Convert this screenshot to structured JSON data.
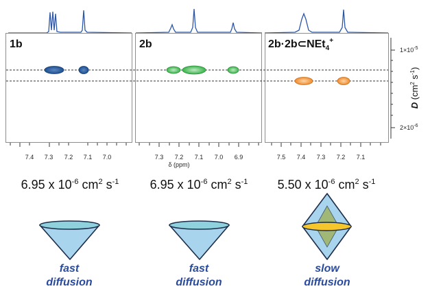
{
  "colors": {
    "spectrum": "#2a56a6",
    "frame": "#8c8c8c",
    "blue_spot": "#1d4f8f",
    "green_spot": "#39b54a",
    "orange_spot": "#f08c2e",
    "cone_fill": "#a9d4ee",
    "cone_stroke": "#1b2d4a",
    "cone_rim": "#3cb5c4",
    "guest_fill": "#f6c62d",
    "desc_text": "#2a4a9c"
  },
  "panels": [
    {
      "label": "1b",
      "ticks": [
        "7.4",
        "7.3",
        "7.2",
        "7.1",
        "7.0"
      ],
      "value_main": "6.95 x 10",
      "value_exp": "-6",
      "value_unit": " cm",
      "value_unit_exp": "2",
      "value_tail": " s",
      "value_tail_exp": "-1",
      "desc_line1": "fast",
      "desc_line2": "diffusion"
    },
    {
      "label": "2b",
      "ticks": [
        "7.3",
        "7.2",
        "7.1",
        "7.0",
        "6.9"
      ],
      "axis_title": "δ (ppm)",
      "value_main": "6.95 x 10",
      "value_exp": "-6",
      "value_unit": " cm",
      "value_unit_exp": "2",
      "value_tail": " s",
      "value_tail_exp": "-1",
      "desc_line1": "fast",
      "desc_line2": "diffusion"
    },
    {
      "label_main": "2b·2b⊂NEt",
      "label_sub": "4",
      "label_sup": "+",
      "ticks": [
        "7.5",
        "7.4",
        "7.3",
        "7.2",
        "7.1"
      ],
      "value_main": "5.50 x 10",
      "value_exp": "-6",
      "value_unit": " cm",
      "value_unit_exp": "2",
      "value_tail": " s",
      "value_tail_exp": "-1",
      "desc_line1": "slow",
      "desc_line2": "diffusion"
    }
  ],
  "d_axis": {
    "title_main": "D",
    "title_unit": " (cm",
    "title_unit_exp": "2",
    "title_tail": " s",
    "title_tail_exp": "-1",
    "title_close": ")",
    "tick_top": "1×10",
    "tick_top_exp": "-5",
    "tick_bottom": "2×10",
    "tick_bottom_exp": "-6"
  }
}
